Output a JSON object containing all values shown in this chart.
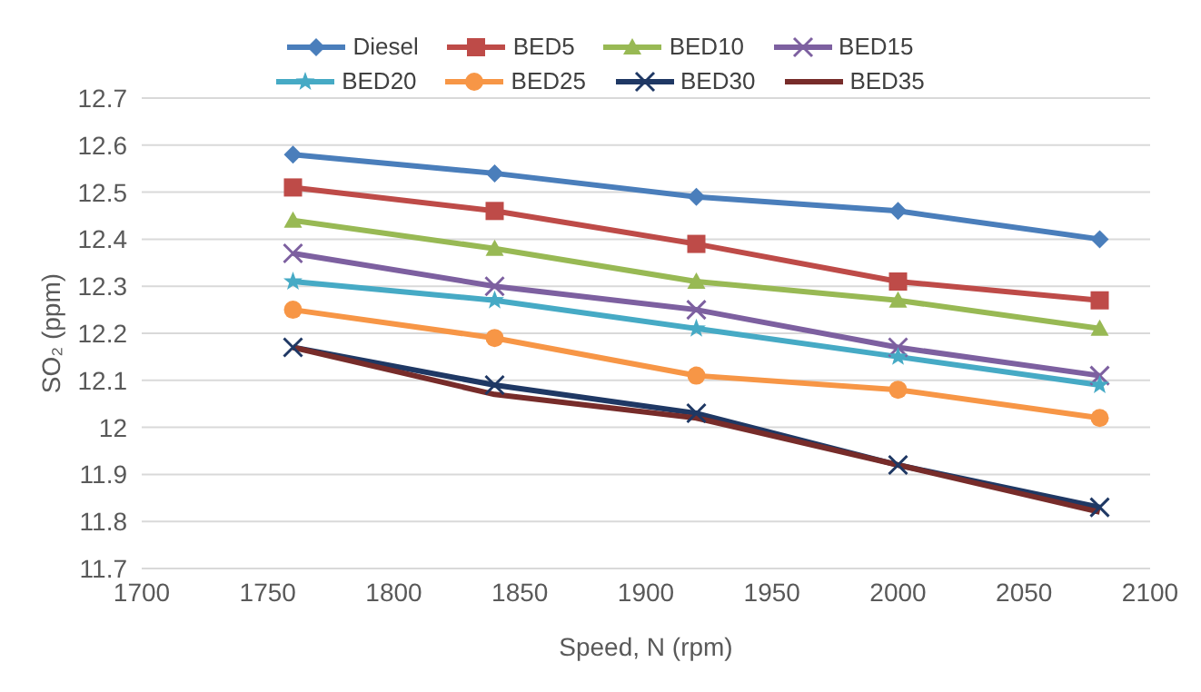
{
  "chart_data": {
    "type": "line",
    "xlabel": "Speed, N (rpm)",
    "ylabel": "SO₂ (ppm)",
    "x": [
      1760,
      1840,
      1920,
      2000,
      2080
    ],
    "xlim": [
      1700,
      2100
    ],
    "xticks": [
      1700,
      1750,
      1800,
      1850,
      1900,
      1950,
      2000,
      2050,
      2100
    ],
    "ylim": [
      11.7,
      12.7
    ],
    "yticks": [
      11.7,
      11.8,
      11.9,
      {
        "value": 12,
        "label": "12"
      },
      12.1,
      12.2,
      12.3,
      12.4,
      12.5,
      12.6,
      12.7
    ],
    "grid": "y",
    "legend": "top",
    "series": [
      {
        "name": "Diesel",
        "color": "#4a7ebb",
        "marker": "diamond",
        "values": [
          12.58,
          12.54,
          12.49,
          12.46,
          12.4
        ]
      },
      {
        "name": "BED5",
        "color": "#be4b48",
        "marker": "square",
        "values": [
          12.51,
          12.46,
          12.39,
          12.31,
          12.27
        ]
      },
      {
        "name": "BED10",
        "color": "#98b954",
        "marker": "triangle",
        "values": [
          12.44,
          12.38,
          12.31,
          12.27,
          12.21
        ]
      },
      {
        "name": "BED15",
        "color": "#7d60a0",
        "marker": "cross",
        "values": [
          12.37,
          12.3,
          12.25,
          12.17,
          12.11
        ]
      },
      {
        "name": "BED20",
        "color": "#46aac5",
        "marker": "star",
        "values": [
          12.31,
          12.27,
          12.21,
          12.15,
          12.09
        ]
      },
      {
        "name": "BED25",
        "color": "#f79646",
        "marker": "circle",
        "values": [
          12.25,
          12.19,
          12.11,
          12.08,
          12.02
        ]
      },
      {
        "name": "BED30",
        "color": "#1f3864",
        "marker": "cross",
        "values": [
          12.17,
          12.09,
          12.03,
          11.92,
          11.83
        ]
      },
      {
        "name": "BED35",
        "color": "#772c2a",
        "marker": "none",
        "values": [
          12.17,
          12.07,
          12.02,
          11.92,
          11.82
        ]
      }
    ]
  }
}
